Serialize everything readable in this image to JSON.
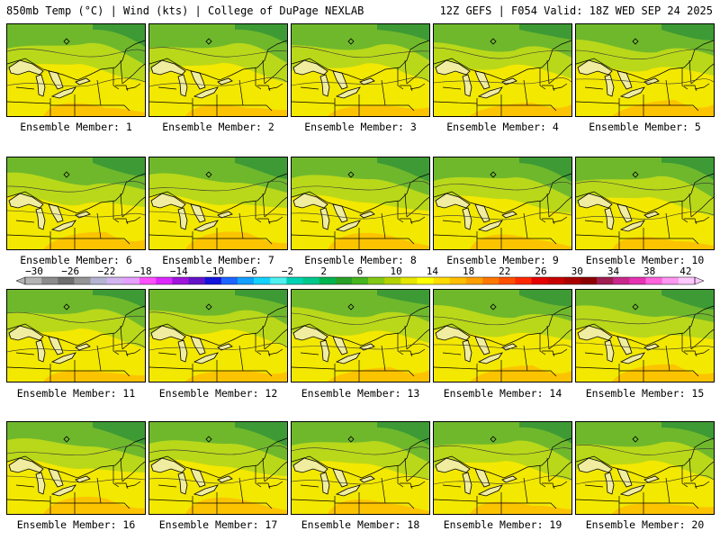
{
  "header": {
    "left": "850mb Temp (°C) | Wind (kts) | College of DuPage NEXLAB",
    "right": "12Z GEFS | F054 Valid: 18Z WED SEP 24 2025"
  },
  "members": [
    {
      "label": "Ensemble Member: 1"
    },
    {
      "label": "Ensemble Member: 2"
    },
    {
      "label": "Ensemble Member: 3"
    },
    {
      "label": "Ensemble Member: 4"
    },
    {
      "label": "Ensemble Member: 5"
    },
    {
      "label": "Ensemble Member: 6"
    },
    {
      "label": "Ensemble Member: 7"
    },
    {
      "label": "Ensemble Member: 8"
    },
    {
      "label": "Ensemble Member: 9"
    },
    {
      "label": "Ensemble Member: 10"
    },
    {
      "label": "Ensemble Member: 11"
    },
    {
      "label": "Ensemble Member: 12"
    },
    {
      "label": "Ensemble Member: 13"
    },
    {
      "label": "Ensemble Member: 14"
    },
    {
      "label": "Ensemble Member: 15"
    },
    {
      "label": "Ensemble Member: 16"
    },
    {
      "label": "Ensemble Member: 17"
    },
    {
      "label": "Ensemble Member: 18"
    },
    {
      "label": "Ensemble Member: 19"
    },
    {
      "label": "Ensemble Member: 20"
    }
  ],
  "colorbar": {
    "ticks": [
      "−30",
      "−26",
      "−22",
      "−18",
      "−14",
      "−10",
      "−6",
      "−2",
      "2",
      "6",
      "10",
      "14",
      "18",
      "22",
      "26",
      "30",
      "34",
      "38",
      "42"
    ],
    "colors": [
      "#b4b4b4",
      "#8c8c8c",
      "#6e6e6e",
      "#969696",
      "#b4b4d2",
      "#d2b4f0",
      "#e6a0ff",
      "#ff50ff",
      "#dc28ff",
      "#a014dc",
      "#6414c8",
      "#1414dc",
      "#1e64ff",
      "#14a0ff",
      "#14d2ff",
      "#50f0f0",
      "#00d2b4",
      "#00c88c",
      "#00b450",
      "#28a028",
      "#46b41e",
      "#82c814",
      "#b4d200",
      "#e6e600",
      "#ffff00",
      "#ffdc00",
      "#ffbe00",
      "#ffa000",
      "#ff7800",
      "#ff5000",
      "#ff2800",
      "#e60000",
      "#c80000",
      "#aa0000",
      "#8c0000",
      "#a01e50",
      "#c8288c",
      "#e632b4",
      "#ff64dc",
      "#ff96f0",
      "#ffc8ff"
    ]
  }
}
